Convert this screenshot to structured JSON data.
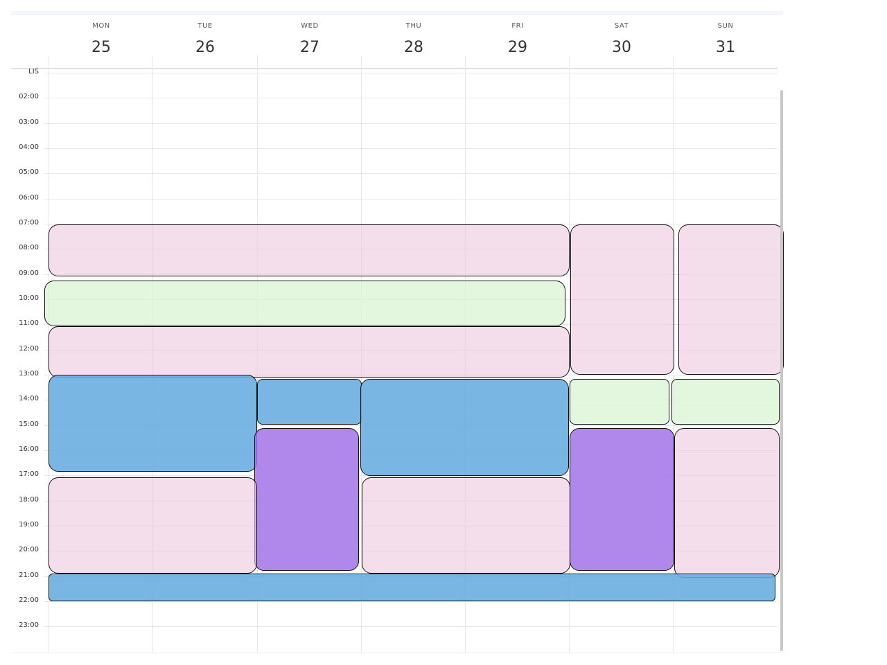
{
  "header": {
    "days": [
      {
        "weekday": "MON",
        "date": "25"
      },
      {
        "weekday": "TUE",
        "date": "26"
      },
      {
        "weekday": "WED",
        "date": "27"
      },
      {
        "weekday": "THU",
        "date": "28"
      },
      {
        "weekday": "FRI",
        "date": "29"
      },
      {
        "weekday": "SAT",
        "date": "30"
      },
      {
        "weekday": "SUN",
        "date": "31"
      }
    ]
  },
  "time_labels": [
    "LIS",
    "02:00",
    "03:00",
    "04:00",
    "05:00",
    "06:00",
    "07:00",
    "08:00",
    "09:00",
    "10:00",
    "11:00",
    "12:00",
    "13:00",
    "14:00",
    "15:00",
    "16:00",
    "17:00",
    "18:00",
    "19:00",
    "20:00",
    "21:00",
    "22:00",
    "23:00"
  ]
}
